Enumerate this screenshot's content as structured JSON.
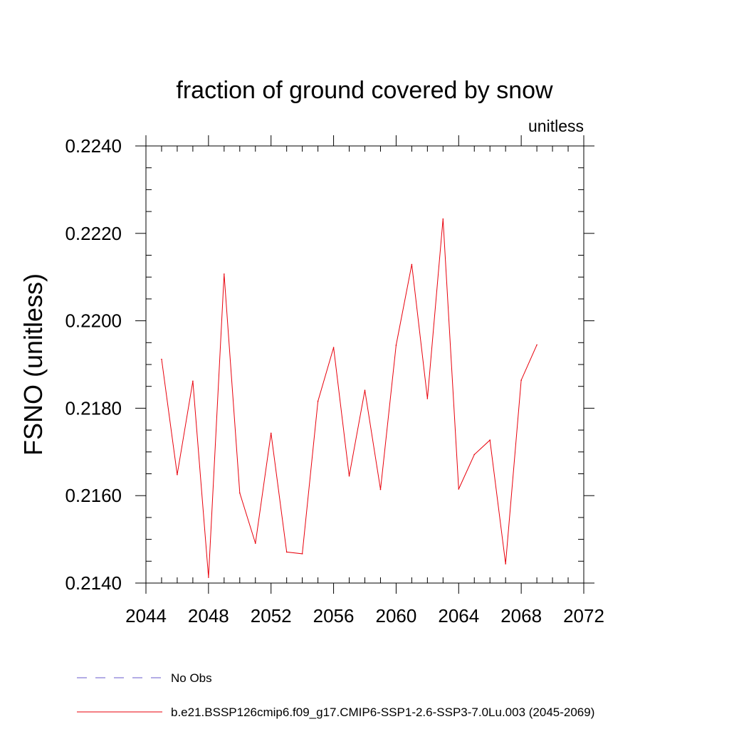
{
  "chart_data": {
    "type": "line",
    "title": "fraction of ground covered by snow",
    "units_label": "unitless",
    "xlabel": "",
    "ylabel": "FSNO  (unitless)",
    "xlim": [
      2044,
      2072
    ],
    "ylim": [
      0.214,
      0.224
    ],
    "xticks": [
      2044,
      2048,
      2052,
      2056,
      2060,
      2064,
      2068,
      2072
    ],
    "yticks": [
      0.214,
      0.216,
      0.218,
      0.22,
      0.222,
      0.224
    ],
    "ytick_labels": [
      "0.2140",
      "0.2160",
      "0.2180",
      "0.2200",
      "0.2220",
      "0.2240"
    ],
    "x_minor_step": 1,
    "y_minor_step": 0.0005,
    "grid": false,
    "series": [
      {
        "name": "b.e21.BSSP126cmip6.f09_g17.CMIP6-SSP1-2.6-SSP3-7.0Lu.003 (2045-2069)",
        "color": "#e8000b",
        "x": [
          2045,
          2046,
          2047,
          2048,
          2049,
          2050,
          2051,
          2052,
          2053,
          2054,
          2055,
          2056,
          2057,
          2058,
          2059,
          2060,
          2061,
          2062,
          2063,
          2064,
          2065,
          2066,
          2067,
          2068,
          2069
        ],
        "values": [
          0.21912,
          0.21648,
          0.21862,
          0.21413,
          0.22107,
          0.21606,
          0.21491,
          0.21743,
          0.21471,
          0.21467,
          0.21816,
          0.21939,
          0.21645,
          0.21841,
          0.21614,
          0.21944,
          0.22129,
          0.21822,
          0.22233,
          0.21615,
          0.21694,
          0.21727,
          0.21444,
          0.21864,
          0.21945
        ]
      }
    ],
    "legend": [
      {
        "label": "No Obs",
        "style": "dashed",
        "color": "#6a5acd"
      },
      {
        "label": "b.e21.BSSP126cmip6.f09_g17.CMIP6-SSP1-2.6-SSP3-7.0Lu.003 (2045-2069)",
        "style": "solid",
        "color": "#e8000b"
      }
    ],
    "legend_position": "bottom-left"
  }
}
